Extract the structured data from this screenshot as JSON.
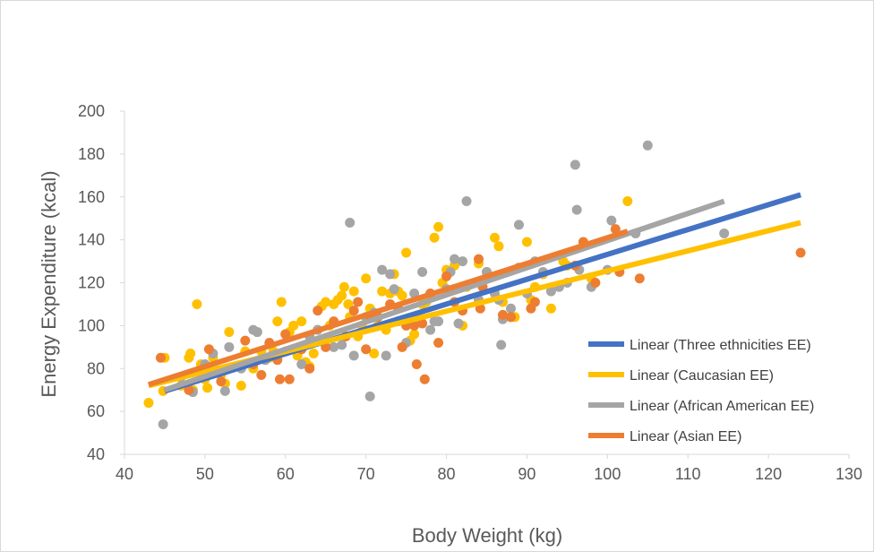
{
  "chart_data": {
    "type": "scatter",
    "title": "",
    "xlabel": "Body Weight (kg)",
    "ylabel": "Energy Expenditure (kcal)",
    "xlim": [
      40,
      130
    ],
    "ylim": [
      40,
      200
    ],
    "xticks": [
      40,
      50,
      60,
      70,
      80,
      90,
      100,
      110,
      120,
      130
    ],
    "yticks": [
      40,
      60,
      80,
      100,
      120,
      140,
      160,
      180,
      200
    ],
    "grid": false,
    "legend_position": "bottom-right",
    "series": [
      {
        "name": "Caucasian EE",
        "color": "#ffc000",
        "points": [
          [
            43,
            64
          ],
          [
            44.8,
            69.5
          ],
          [
            45,
            85
          ],
          [
            47,
            72
          ],
          [
            48,
            85
          ],
          [
            48.2,
            87
          ],
          [
            48.5,
            70
          ],
          [
            49,
            110
          ],
          [
            49.5,
            82
          ],
          [
            50,
            75
          ],
          [
            50.3,
            71
          ],
          [
            51,
            85
          ],
          [
            52,
            77
          ],
          [
            52.5,
            73
          ],
          [
            53,
            97
          ],
          [
            54.5,
            72
          ],
          [
            55,
            88
          ],
          [
            56,
            80
          ],
          [
            56.5,
            97
          ],
          [
            57,
            88
          ],
          [
            57.5,
            84
          ],
          [
            58,
            85
          ],
          [
            58.5,
            88
          ],
          [
            59,
            102
          ],
          [
            59.5,
            111
          ],
          [
            60,
            96
          ],
          [
            60.5,
            97
          ],
          [
            61,
            100
          ],
          [
            61.5,
            86
          ],
          [
            62,
            102
          ],
          [
            62.5,
            83
          ],
          [
            63,
            81
          ],
          [
            63.5,
            87
          ],
          [
            64,
            98
          ],
          [
            64.5,
            109
          ],
          [
            65,
            111
          ],
          [
            65.5,
            100
          ],
          [
            66,
            110
          ],
          [
            66.5,
            112
          ],
          [
            67,
            114
          ],
          [
            67.3,
            118
          ],
          [
            67.8,
            110
          ],
          [
            68,
            104
          ],
          [
            68.5,
            116
          ],
          [
            69,
            95
          ],
          [
            69.5,
            100
          ],
          [
            70,
            122
          ],
          [
            70.5,
            108
          ],
          [
            71,
            87
          ],
          [
            71.5,
            100
          ],
          [
            72,
            116
          ],
          [
            72.5,
            98
          ],
          [
            73,
            115
          ],
          [
            73.5,
            124
          ],
          [
            74,
            116
          ],
          [
            74.5,
            114
          ],
          [
            75,
            134
          ],
          [
            75.5,
            93
          ],
          [
            76,
            96
          ],
          [
            76.5,
            103
          ],
          [
            77,
            110
          ],
          [
            77.5,
            111
          ],
          [
            78,
            113
          ],
          [
            78.5,
            141
          ],
          [
            79,
            146
          ],
          [
            79.5,
            120
          ],
          [
            80,
            126
          ],
          [
            81,
            128
          ],
          [
            82,
            100
          ],
          [
            82.5,
            118
          ],
          [
            84,
            129
          ],
          [
            85,
            125
          ],
          [
            86,
            141
          ],
          [
            86.5,
            137
          ],
          [
            87,
            111
          ],
          [
            88.5,
            104
          ],
          [
            90,
            139
          ],
          [
            90.5,
            112
          ],
          [
            91,
            118
          ],
          [
            92,
            124
          ],
          [
            93,
            108
          ],
          [
            94.5,
            130
          ],
          [
            95,
            128
          ],
          [
            98,
            122
          ],
          [
            102.5,
            158
          ]
        ]
      },
      {
        "name": "African American EE",
        "color": "#a5a5a5",
        "points": [
          [
            44.8,
            54
          ],
          [
            47,
            76
          ],
          [
            48.5,
            69
          ],
          [
            50,
            82
          ],
          [
            51,
            87
          ],
          [
            52.5,
            69.5
          ],
          [
            53,
            90
          ],
          [
            54.5,
            80
          ],
          [
            56,
            98
          ],
          [
            56.5,
            97
          ],
          [
            57.5,
            84
          ],
          [
            60,
            88
          ],
          [
            62,
            82
          ],
          [
            63,
            95
          ],
          [
            64,
            98
          ],
          [
            66,
            90
          ],
          [
            67,
            91
          ],
          [
            68,
            148
          ],
          [
            68.5,
            86
          ],
          [
            70,
            104
          ],
          [
            70.5,
            67
          ],
          [
            71,
            106
          ],
          [
            72,
            126
          ],
          [
            72.5,
            86
          ],
          [
            73,
            124
          ],
          [
            73.5,
            117
          ],
          [
            74,
            102
          ],
          [
            75,
            92
          ],
          [
            76,
            115
          ],
          [
            77,
            125
          ],
          [
            78,
            98
          ],
          [
            78.5,
            102
          ],
          [
            79,
            102
          ],
          [
            80,
            117
          ],
          [
            80.5,
            125
          ],
          [
            81,
            131
          ],
          [
            81.5,
            101
          ],
          [
            82,
            130
          ],
          [
            82.5,
            158
          ],
          [
            84,
            112
          ],
          [
            85,
            125
          ],
          [
            86,
            115
          ],
          [
            86.5,
            112
          ],
          [
            86.8,
            91
          ],
          [
            87,
            103
          ],
          [
            88,
            108
          ],
          [
            89,
            147
          ],
          [
            90,
            115
          ],
          [
            91,
            130
          ],
          [
            92,
            125
          ],
          [
            93,
            116
          ],
          [
            94,
            118
          ],
          [
            95,
            120
          ],
          [
            96,
            175
          ],
          [
            96.2,
            154
          ],
          [
            96.5,
            126
          ],
          [
            98,
            118
          ],
          [
            100,
            126
          ],
          [
            100.5,
            149
          ],
          [
            103.5,
            143
          ],
          [
            105,
            184
          ],
          [
            114.5,
            143
          ]
        ]
      },
      {
        "name": "Asian EE",
        "color": "#ed7d31",
        "points": [
          [
            44.5,
            85
          ],
          [
            48,
            70
          ],
          [
            50.5,
            89
          ],
          [
            52,
            74
          ],
          [
            55,
            93
          ],
          [
            56,
            82
          ],
          [
            57,
            77
          ],
          [
            58,
            92
          ],
          [
            59,
            84
          ],
          [
            60,
            96
          ],
          [
            59.3,
            75
          ],
          [
            60.5,
            75
          ],
          [
            62,
            89
          ],
          [
            63,
            80
          ],
          [
            64,
            107
          ],
          [
            65,
            90
          ],
          [
            66,
            102
          ],
          [
            67.5,
            95
          ],
          [
            68.5,
            107
          ],
          [
            69,
            111
          ],
          [
            70,
            89
          ],
          [
            70.5,
            104
          ],
          [
            71.5,
            104
          ],
          [
            73,
            110
          ],
          [
            74,
            108
          ],
          [
            74.5,
            90
          ],
          [
            75,
            100
          ],
          [
            76,
            100
          ],
          [
            76.3,
            82
          ],
          [
            77,
            101
          ],
          [
            77.3,
            75
          ],
          [
            78,
            115
          ],
          [
            79,
            92
          ],
          [
            80,
            123
          ],
          [
            81,
            111
          ],
          [
            82,
            107
          ],
          [
            84,
            131
          ],
          [
            84.2,
            108
          ],
          [
            84.5,
            118
          ],
          [
            87,
            105
          ],
          [
            88,
            104
          ],
          [
            89,
            127
          ],
          [
            90.5,
            108
          ],
          [
            91,
            111
          ],
          [
            96,
            128
          ],
          [
            97,
            139
          ],
          [
            98.5,
            120
          ],
          [
            101,
            145
          ],
          [
            101.5,
            125
          ],
          [
            104,
            122
          ],
          [
            124,
            134
          ]
        ]
      }
    ],
    "trendlines": [
      {
        "name": "Linear (Three ethnicities EE)",
        "legend_label": "Linear (Three ethnicities EE)",
        "color": "#4472c4",
        "x": [
          45,
          124
        ],
        "y": [
          69.5,
          161
        ]
      },
      {
        "name": "Linear (Caucasian EE)",
        "legend_label": "Linear (Caucasian EE)",
        "color": "#ffc000",
        "x": [
          43,
          124
        ],
        "y": [
          72,
          148
        ]
      },
      {
        "name": "Linear (African American EE)",
        "legend_label": "Linear (African American EE)",
        "color": "#a5a5a5",
        "x": [
          45,
          114.5
        ],
        "y": [
          70,
          158
        ]
      },
      {
        "name": "Linear (Asian EE)",
        "legend_label": "Linear (Asian EE)",
        "color": "#ed7d31",
        "x": [
          43,
          102.5
        ],
        "y": [
          72.5,
          144
        ]
      }
    ]
  }
}
